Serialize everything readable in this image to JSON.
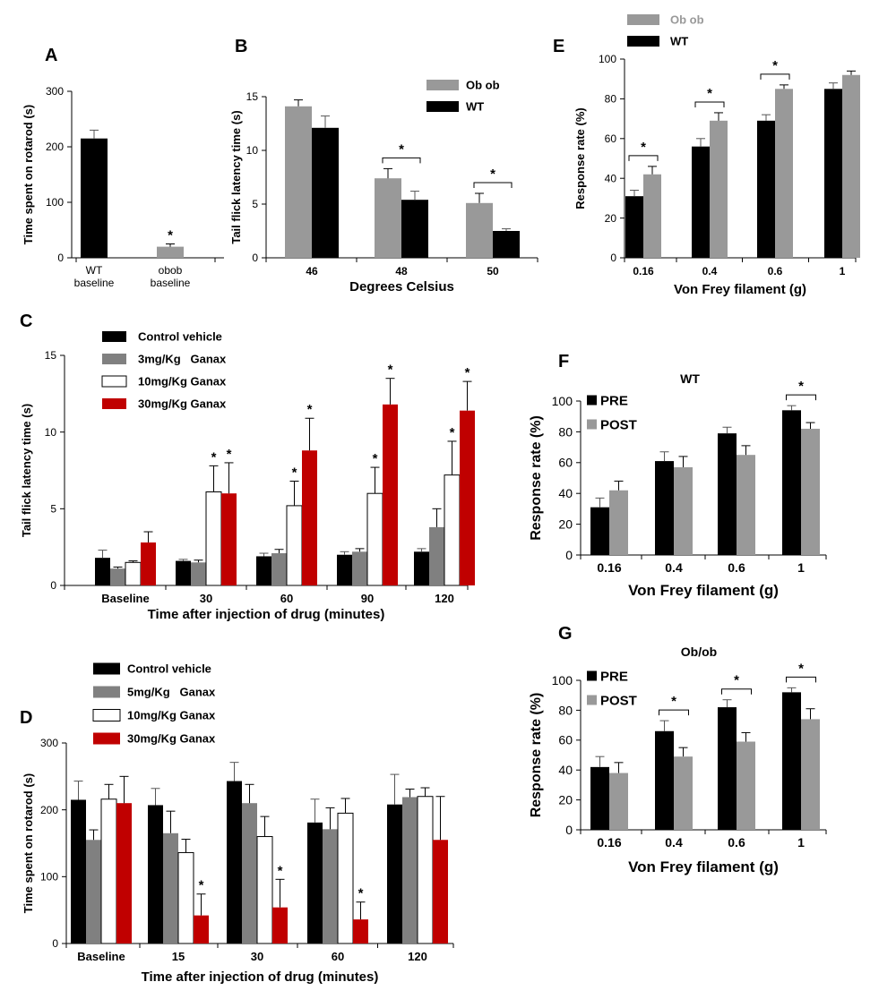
{
  "figure": {
    "panels": [
      "A",
      "B",
      "C",
      "D",
      "E",
      "F",
      "G"
    ]
  },
  "chart_data": [
    {
      "id": "A",
      "type": "bar",
      "categories": [
        "WT baseline",
        "obob baseline"
      ],
      "category_lines": [
        [
          "WT",
          "baseline"
        ],
        [
          "obob",
          "baseline"
        ]
      ],
      "series": [
        {
          "values": [
            215,
            20
          ],
          "errors": [
            15,
            5
          ],
          "colors": [
            "#000000",
            "#999999"
          ]
        }
      ],
      "title": "",
      "xlabel": "",
      "ylabel": "Time spent on rotarod (s)",
      "ylim": [
        0,
        300
      ],
      "yticks": [
        0,
        100,
        200,
        300
      ],
      "significance": [
        {
          "series": 0,
          "category": 1,
          "label": "*"
        }
      ],
      "legend": [],
      "grid": false
    },
    {
      "id": "B",
      "type": "bar",
      "categories": [
        "46",
        "48",
        "50"
      ],
      "series": [
        {
          "name": "Ob ob",
          "color": "#999999",
          "values": [
            14.1,
            7.4,
            5.1
          ],
          "errors": [
            0.6,
            0.9,
            0.9
          ]
        },
        {
          "name": "WT",
          "color": "#000000",
          "values": [
            12.1,
            5.4,
            2.5
          ],
          "errors": [
            1.1,
            0.8,
            0.2
          ]
        }
      ],
      "title": "",
      "xlabel": "Degrees Celsius",
      "ylabel": "Tail flick latency time (s)",
      "ylim": [
        0,
        15
      ],
      "yticks": [
        0,
        5,
        10,
        15
      ],
      "brackets": [
        {
          "category": 1,
          "label": "*"
        },
        {
          "category": 2,
          "label": "*"
        }
      ],
      "legend_position": "top-right",
      "grid": false
    },
    {
      "id": "C",
      "type": "bar",
      "categories": [
        "Baseline",
        "30",
        "60",
        "90",
        "120"
      ],
      "series": [
        {
          "name": "Control vehicle",
          "color": "#000000",
          "values": [
            1.8,
            1.6,
            1.9,
            2.0,
            2.2
          ],
          "errors": [
            0.5,
            0.1,
            0.2,
            0.2,
            0.2
          ]
        },
        {
          "name": "3mg/Kg   Ganax",
          "color": "#808080",
          "values": [
            1.1,
            1.5,
            2.1,
            2.2,
            3.8
          ],
          "errors": [
            0.1,
            0.15,
            0.25,
            0.2,
            1.2
          ]
        },
        {
          "name": "10mg/Kg Ganax",
          "color": "#ffffff",
          "values": [
            1.5,
            6.1,
            5.2,
            6.0,
            7.2
          ],
          "errors": [
            0.1,
            1.7,
            1.6,
            1.7,
            2.2
          ]
        },
        {
          "name": "30mg/Kg Ganax",
          "color": "#c00000",
          "values": [
            2.8,
            6.0,
            8.8,
            11.8,
            11.4
          ],
          "errors": [
            0.7,
            2.0,
            2.1,
            1.7,
            1.9
          ]
        }
      ],
      "title": "",
      "xlabel": "Time after injection of drug (minutes)",
      "ylabel": "Tail flick latency time (s)",
      "ylim": [
        0,
        15
      ],
      "yticks": [
        0,
        5,
        10,
        15
      ],
      "significance": [
        {
          "series": 2,
          "category": 1,
          "label": "*"
        },
        {
          "series": 3,
          "category": 1,
          "label": "*"
        },
        {
          "series": 2,
          "category": 2,
          "label": "*"
        },
        {
          "series": 3,
          "category": 2,
          "label": "*"
        },
        {
          "series": 2,
          "category": 3,
          "label": "*"
        },
        {
          "series": 3,
          "category": 3,
          "label": "*"
        },
        {
          "series": 2,
          "category": 4,
          "label": "*"
        },
        {
          "series": 3,
          "category": 4,
          "label": "*"
        }
      ],
      "legend_position": "top-left",
      "grid": false
    },
    {
      "id": "D",
      "type": "bar",
      "categories": [
        "Baseline",
        "15",
        "30",
        "60",
        "120"
      ],
      "series": [
        {
          "name": "Control vehicle",
          "color": "#000000",
          "values": [
            215,
            207,
            243,
            181,
            208
          ],
          "errors": [
            28,
            25,
            28,
            35,
            45
          ]
        },
        {
          "name": "5mg/Kg   Ganax",
          "color": "#808080",
          "values": [
            155,
            165,
            210,
            171,
            219
          ],
          "errors": [
            15,
            33,
            28,
            32,
            12
          ]
        },
        {
          "name": "10mg/Kg Ganax",
          "color": "#ffffff",
          "values": [
            216,
            136,
            160,
            195,
            220
          ],
          "errors": [
            22,
            20,
            30,
            22,
            13
          ]
        },
        {
          "name": "30mg/Kg Ganax",
          "color": "#c00000",
          "values": [
            210,
            42,
            54,
            36,
            155
          ],
          "errors": [
            40,
            32,
            42,
            26,
            65
          ]
        }
      ],
      "title": "",
      "xlabel": "Time after injection of drug (minutes)",
      "ylabel": "Time spent on rotarod (s)",
      "ylim": [
        0,
        300
      ],
      "yticks": [
        0,
        100,
        200,
        300
      ],
      "significance": [
        {
          "series": 3,
          "category": 1,
          "label": "*"
        },
        {
          "series": 3,
          "category": 2,
          "label": "*"
        },
        {
          "series": 3,
          "category": 3,
          "label": "*"
        }
      ],
      "legend_position": "top-left",
      "grid": false
    },
    {
      "id": "E",
      "type": "bar",
      "categories": [
        "0.16",
        "0.4",
        "0.6",
        "1"
      ],
      "series": [
        {
          "name": "WT",
          "color": "#000000",
          "values": [
            31,
            56,
            69,
            85
          ],
          "errors": [
            3,
            4,
            3,
            3
          ]
        },
        {
          "name": "Ob ob",
          "color": "#999999",
          "values": [
            42,
            69,
            85,
            92
          ],
          "errors": [
            4,
            4,
            2,
            2
          ]
        }
      ],
      "legend_order": [
        "Ob ob",
        "WT"
      ],
      "title": "",
      "xlabel": "Von Frey filament (g)",
      "ylabel": "Response rate (%)",
      "ylim": [
        0,
        100
      ],
      "yticks": [
        0,
        20,
        40,
        60,
        80,
        100
      ],
      "brackets": [
        {
          "category": 0,
          "label": "*"
        },
        {
          "category": 1,
          "label": "*"
        },
        {
          "category": 2,
          "label": "*"
        }
      ],
      "legend_position": "top-left",
      "grid": false
    },
    {
      "id": "F",
      "type": "bar",
      "categories": [
        "0.16",
        "0.4",
        "0.6",
        "1"
      ],
      "series": [
        {
          "name": "PRE",
          "color": "#000000",
          "values": [
            31,
            61,
            79,
            94
          ],
          "errors": [
            6,
            6,
            4,
            3
          ]
        },
        {
          "name": "POST",
          "color": "#999999",
          "values": [
            42,
            57,
            65,
            82
          ],
          "errors": [
            6,
            7,
            6,
            4
          ]
        }
      ],
      "title": "WT",
      "xlabel": "Von Frey filament (g)",
      "ylabel": "Response rate (%)",
      "ylim": [
        0,
        100
      ],
      "yticks": [
        0,
        20,
        40,
        60,
        80,
        100
      ],
      "brackets": [
        {
          "category": 3,
          "label": "*"
        }
      ],
      "legend_position": "top-left",
      "grid": false
    },
    {
      "id": "G",
      "type": "bar",
      "categories": [
        "0.16",
        "0.4",
        "0.6",
        "1"
      ],
      "series": [
        {
          "name": "PRE",
          "color": "#000000",
          "values": [
            42,
            66,
            82,
            92
          ],
          "errors": [
            7,
            7,
            5,
            3
          ]
        },
        {
          "name": "POST",
          "color": "#999999",
          "values": [
            38,
            49,
            59,
            74
          ],
          "errors": [
            7,
            6,
            6,
            7
          ]
        }
      ],
      "title": "Ob/ob",
      "xlabel": "Von Frey filament (g)",
      "ylabel": "Response rate (%)",
      "ylim": [
        0,
        100
      ],
      "yticks": [
        0,
        20,
        40,
        60,
        80,
        100
      ],
      "brackets": [
        {
          "category": 1,
          "label": "*"
        },
        {
          "category": 2,
          "label": "*"
        },
        {
          "category": 3,
          "label": "*"
        }
      ],
      "legend_position": "top-left",
      "grid": false
    }
  ]
}
